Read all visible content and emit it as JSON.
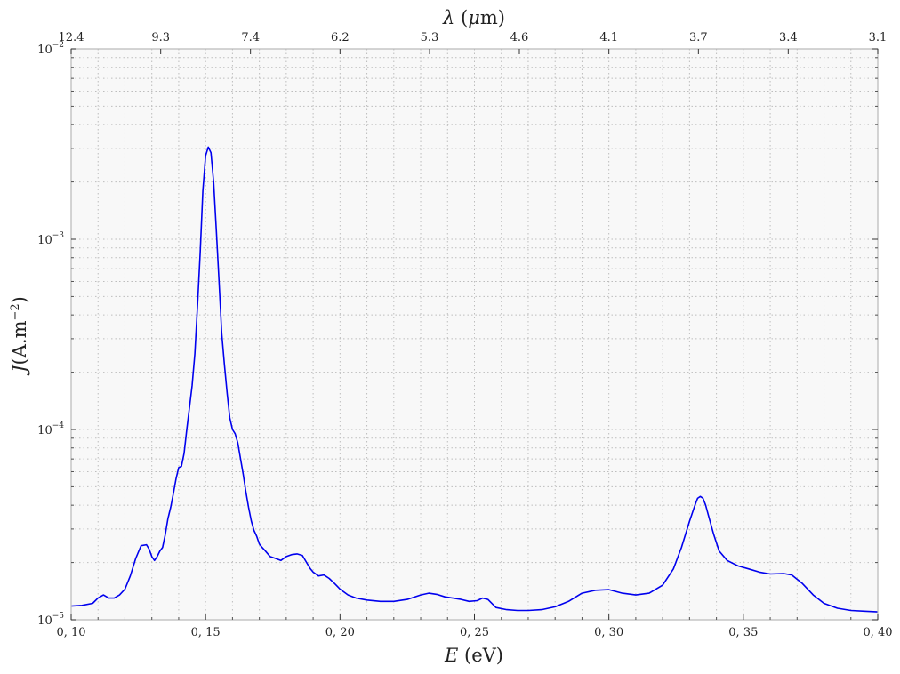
{
  "chart_data": {
    "type": "line",
    "xlabel": {
      "sym": "E",
      "rest": " (eV)"
    },
    "ylabel": {
      "sym": "J",
      "rest": "(A.m",
      "exp": "−2",
      "close": ")"
    },
    "top_xlabel": {
      "sym": "λ",
      "rest": " (",
      "mu": "μ",
      "unit": "m)"
    },
    "xlim": [
      0.1,
      0.4
    ],
    "ylim": [
      1e-05,
      0.01
    ],
    "yscale": "log",
    "grid": true,
    "x_ticks": [
      {
        "value": 0.1,
        "label": "0, 10"
      },
      {
        "value": 0.15,
        "label": "0, 15"
      },
      {
        "value": 0.2,
        "label": "0, 20"
      },
      {
        "value": 0.25,
        "label": "0, 25"
      },
      {
        "value": 0.3,
        "label": "0, 30"
      },
      {
        "value": 0.35,
        "label": "0, 35"
      },
      {
        "value": 0.4,
        "label": "0, 40"
      }
    ],
    "y_ticks": [
      {
        "value": 1e-05,
        "base": "10",
        "exp": "−5"
      },
      {
        "value": 0.0001,
        "base": "10",
        "exp": "−4"
      },
      {
        "value": 0.001,
        "base": "10",
        "exp": "−3"
      },
      {
        "value": 0.01,
        "base": "10",
        "exp": "−2"
      }
    ],
    "top_ticks": [
      {
        "value": 0.1,
        "label": "12.4"
      },
      {
        "value": 0.1333,
        "label": "9.3"
      },
      {
        "value": 0.1667,
        "label": "7.4"
      },
      {
        "value": 0.2,
        "label": "6.2"
      },
      {
        "value": 0.2333,
        "label": "5.3"
      },
      {
        "value": 0.2667,
        "label": "4.6"
      },
      {
        "value": 0.3,
        "label": "4.1"
      },
      {
        "value": 0.3333,
        "label": "3.7"
      },
      {
        "value": 0.3667,
        "label": "3.4"
      },
      {
        "value": 0.4,
        "label": "3.1"
      }
    ],
    "series": [
      {
        "color": "#0000ee",
        "x": [
          0.1,
          0.104,
          0.108,
          0.11,
          0.112,
          0.114,
          0.116,
          0.118,
          0.12,
          0.122,
          0.124,
          0.126,
          0.128,
          0.129,
          0.13,
          0.131,
          0.132,
          0.133,
          0.134,
          0.135,
          0.136,
          0.137,
          0.138,
          0.139,
          0.14,
          0.141,
          0.142,
          0.143,
          0.144,
          0.145,
          0.146,
          0.147,
          0.148,
          0.149,
          0.15,
          0.151,
          0.152,
          0.153,
          0.154,
          0.155,
          0.156,
          0.157,
          0.158,
          0.159,
          0.16,
          0.161,
          0.162,
          0.163,
          0.164,
          0.165,
          0.166,
          0.167,
          0.168,
          0.169,
          0.17,
          0.171,
          0.172,
          0.174,
          0.176,
          0.178,
          0.18,
          0.182,
          0.184,
          0.186,
          0.188,
          0.189,
          0.19,
          0.192,
          0.194,
          0.196,
          0.198,
          0.2,
          0.203,
          0.206,
          0.21,
          0.215,
          0.22,
          0.225,
          0.23,
          0.233,
          0.236,
          0.239,
          0.242,
          0.245,
          0.248,
          0.251,
          0.253,
          0.255,
          0.258,
          0.262,
          0.266,
          0.27,
          0.275,
          0.28,
          0.285,
          0.29,
          0.295,
          0.3,
          0.305,
          0.31,
          0.315,
          0.32,
          0.324,
          0.327,
          0.33,
          0.332,
          0.333,
          0.334,
          0.335,
          0.336,
          0.337,
          0.339,
          0.341,
          0.344,
          0.348,
          0.352,
          0.356,
          0.36,
          0.365,
          0.368,
          0.372,
          0.376,
          0.38,
          0.385,
          0.39,
          0.395,
          0.4
        ],
        "y": [
          1.18e-05,
          1.19e-05,
          1.22e-05,
          1.3e-05,
          1.35e-05,
          1.3e-05,
          1.3e-05,
          1.35e-05,
          1.45e-05,
          1.7e-05,
          2.1e-05,
          2.45e-05,
          2.48e-05,
          2.35e-05,
          2.15e-05,
          2.05e-05,
          2.15e-05,
          2.3e-05,
          2.4e-05,
          2.8e-05,
          3.4e-05,
          3.9e-05,
          4.6e-05,
          5.5e-05,
          6.3e-05,
          6.4e-05,
          7.5e-05,
          0.0001,
          0.00013,
          0.00017,
          0.00025,
          0.00045,
          0.00085,
          0.0018,
          0.00275,
          0.00305,
          0.00285,
          0.002,
          0.0011,
          0.0006,
          0.00032,
          0.00022,
          0.000155,
          0.000115,
          0.0001,
          9.5e-05,
          8.5e-05,
          7e-05,
          5.8e-05,
          4.7e-05,
          3.9e-05,
          3.3e-05,
          2.95e-05,
          2.75e-05,
          2.5e-05,
          2.4e-05,
          2.32e-05,
          2.15e-05,
          2.1e-05,
          2.05e-05,
          2.15e-05,
          2.2e-05,
          2.22e-05,
          2.18e-05,
          1.95e-05,
          1.85e-05,
          1.78e-05,
          1.7e-05,
          1.72e-05,
          1.65e-05,
          1.55e-05,
          1.45e-05,
          1.35e-05,
          1.3e-05,
          1.27e-05,
          1.25e-05,
          1.25e-05,
          1.28e-05,
          1.35e-05,
          1.38e-05,
          1.36e-05,
          1.32e-05,
          1.3e-05,
          1.28e-05,
          1.25e-05,
          1.26e-05,
          1.3e-05,
          1.28e-05,
          1.16e-05,
          1.13e-05,
          1.12e-05,
          1.12e-05,
          1.13e-05,
          1.17e-05,
          1.25e-05,
          1.38e-05,
          1.43e-05,
          1.44e-05,
          1.38e-05,
          1.35e-05,
          1.38e-05,
          1.52e-05,
          1.85e-05,
          2.4e-05,
          3.3e-05,
          4e-05,
          4.35e-05,
          4.45e-05,
          4.35e-05,
          4e-05,
          3.55e-05,
          2.8e-05,
          2.3e-05,
          2.05e-05,
          1.92e-05,
          1.85e-05,
          1.78e-05,
          1.74e-05,
          1.75e-05,
          1.72e-05,
          1.55e-05,
          1.35e-05,
          1.22e-05,
          1.15e-05,
          1.12e-05,
          1.11e-05,
          1.1e-05
        ]
      }
    ]
  }
}
